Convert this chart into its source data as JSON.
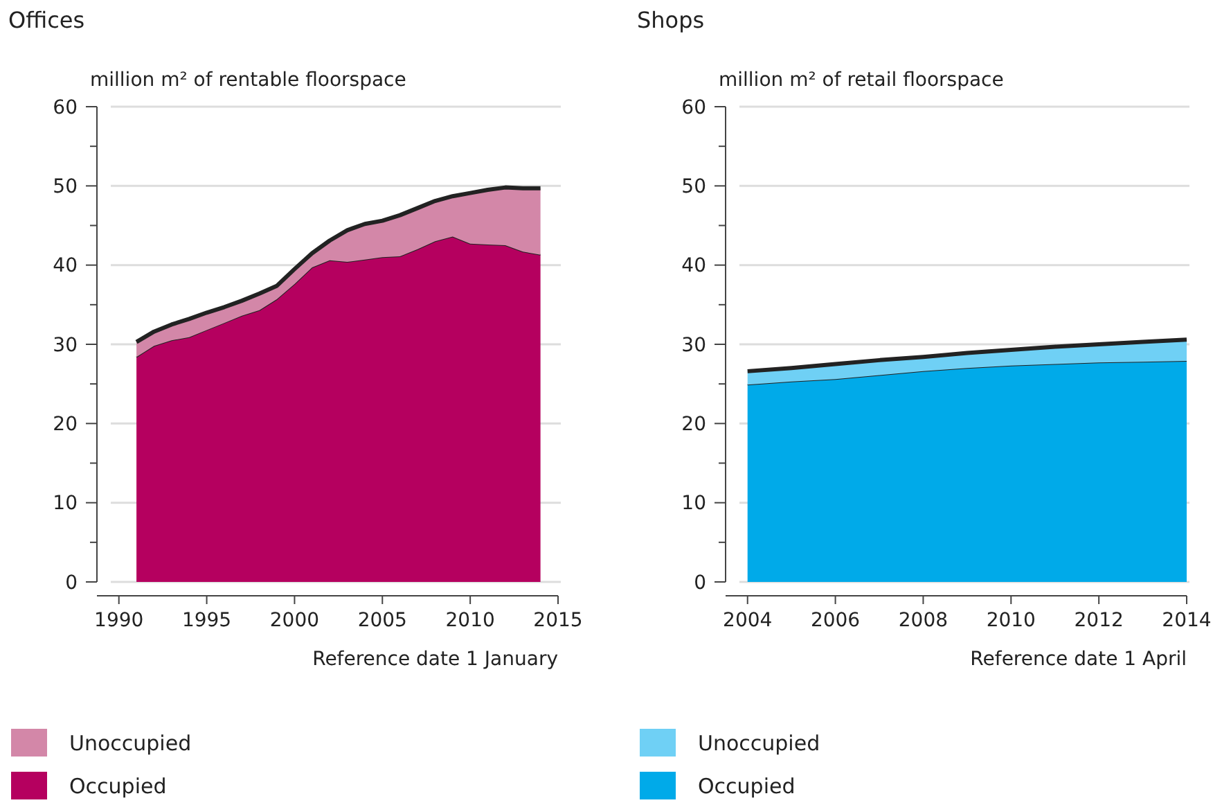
{
  "chart_data": [
    {
      "type": "area",
      "title": "Offices",
      "ylabel": "million m² of rentable floorspace",
      "xlabel": "Reference date 1 January",
      "stacked": true,
      "legend": "bottom",
      "grid": "y",
      "x": [
        1991,
        1992,
        1993,
        1994,
        1995,
        1996,
        1997,
        1998,
        1999,
        2000,
        2001,
        2002,
        2003,
        2004,
        2005,
        2006,
        2007,
        2008,
        2009,
        2010,
        2011,
        2012,
        2013,
        2014
      ],
      "series": [
        {
          "name": "Occupied",
          "color": "#b5005f",
          "values": [
            28.4,
            29.8,
            30.5,
            30.9,
            31.8,
            32.7,
            33.6,
            34.3,
            35.7,
            37.6,
            39.7,
            40.6,
            40.4,
            40.7,
            41.0,
            41.1,
            42.0,
            43.0,
            43.6,
            42.7,
            42.6,
            42.5,
            41.7,
            41.3
          ]
        },
        {
          "name": "Unoccupied",
          "color": "#d387a8",
          "values": [
            1.9,
            1.8,
            2.0,
            2.3,
            2.2,
            2.0,
            1.9,
            2.1,
            1.7,
            1.9,
            1.8,
            2.5,
            4.0,
            4.5,
            4.6,
            5.2,
            5.2,
            5.1,
            5.1,
            6.4,
            6.9,
            7.3,
            8.0,
            8.4
          ]
        }
      ],
      "xlim": [
        1988.75,
        2015
      ],
      "xticks": [
        1990,
        1995,
        2000,
        2005,
        2010,
        2015
      ],
      "ylim": [
        0,
        60
      ],
      "yticks": [
        0,
        {
          "value": 5,
          "label": null
        },
        10,
        {
          "value": 15,
          "label": null
        },
        20,
        {
          "value": 25,
          "label": null
        },
        30,
        {
          "value": 35,
          "label": null
        },
        40,
        {
          "value": 45,
          "label": null
        },
        50,
        {
          "value": 55,
          "label": null
        },
        60
      ]
    },
    {
      "type": "area",
      "title": "Shops",
      "ylabel": "million m² of retail floorspace",
      "xlabel": "Reference date 1 April",
      "stacked": true,
      "legend": "bottom",
      "grid": "y",
      "x": [
        2004,
        2005,
        2006,
        2007,
        2008,
        2009,
        2010,
        2011,
        2012,
        2013,
        2014
      ],
      "series": [
        {
          "name": "Occupied",
          "color": "#00aae9",
          "values": [
            24.9,
            25.3,
            25.6,
            26.1,
            26.6,
            27.0,
            27.3,
            27.5,
            27.7,
            27.8,
            27.9
          ]
        },
        {
          "name": "Unoccupied",
          "color": "#6fd0f5",
          "values": [
            1.7,
            1.7,
            1.9,
            1.9,
            1.8,
            1.9,
            2.0,
            2.2,
            2.3,
            2.5,
            2.7
          ]
        }
      ],
      "xlim": [
        2003.5,
        2014
      ],
      "xticks": [
        2004,
        2006,
        2008,
        2010,
        2012,
        2014
      ],
      "ylim": [
        0,
        60
      ],
      "yticks": [
        0,
        {
          "value": 5,
          "label": null
        },
        10,
        {
          "value": 15,
          "label": null
        },
        20,
        {
          "value": 25,
          "label": null
        },
        30,
        {
          "value": 35,
          "label": null
        },
        40,
        {
          "value": 45,
          "label": null
        },
        50,
        {
          "value": 55,
          "label": null
        },
        60
      ]
    }
  ]
}
